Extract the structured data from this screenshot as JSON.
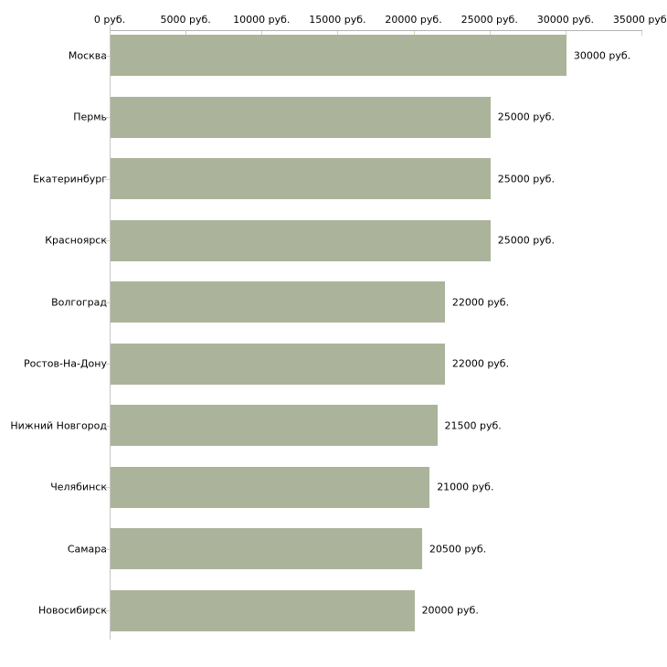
{
  "chart_data": {
    "type": "bar",
    "orientation": "horizontal",
    "title": "",
    "xlabel": "",
    "ylabel": "",
    "unit_suffix": " руб.",
    "categories": [
      "Москва",
      "Пермь",
      "Екатеринбург",
      "Красноярск",
      "Волгоград",
      "Ростов-На-Дону",
      "Нижний Новгород",
      "Челябинск",
      "Самара",
      "Новосибирск"
    ],
    "values": [
      30000,
      25000,
      25000,
      25000,
      22000,
      22000,
      21500,
      21000,
      20500,
      20000
    ],
    "value_labels": [
      "30000 руб.",
      "25000 руб.",
      "25000 руб.",
      "25000 руб.",
      "22000 руб.",
      "22000 руб.",
      "21500 руб.",
      "21000 руб.",
      "20500 руб.",
      "20000 руб."
    ],
    "x_axis": {
      "position": "top",
      "min": 0,
      "max": 35000,
      "ticks": [
        0,
        5000,
        10000,
        15000,
        20000,
        25000,
        30000,
        35000
      ],
      "tick_labels": [
        "0 руб.",
        "5000 руб.",
        "10000 руб.",
        "15000 руб.",
        "20000 руб.",
        "25000 руб.",
        "30000 руб.",
        "35000 руб."
      ]
    },
    "grid": "ticks-only",
    "legend": "none",
    "colors": {
      "bar": "#abb49a",
      "axis_line_top": "#b3b3b3",
      "axis_line_left": "#c6c6c6",
      "tick_mark": "#d4d4b0",
      "text": "#000000",
      "background": "#ffffff"
    }
  }
}
